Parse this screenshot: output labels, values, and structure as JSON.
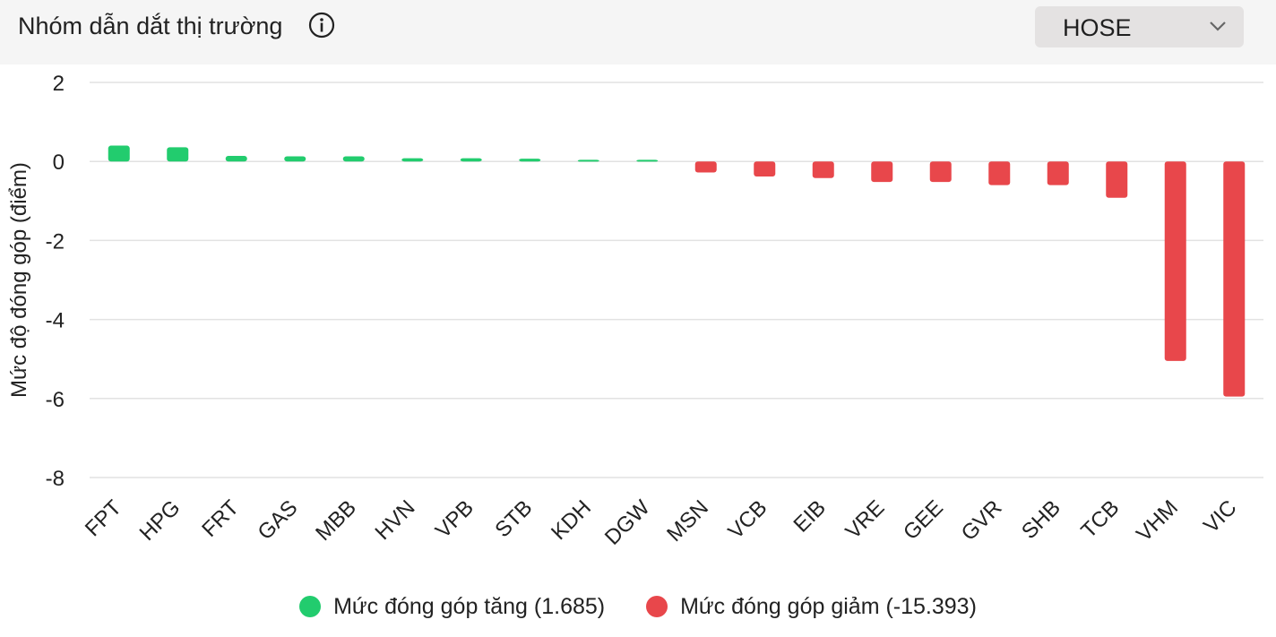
{
  "header": {
    "title": "Nhóm dẫn dắt thị trường",
    "info_icon": "info-circle-icon",
    "exchange_select": {
      "value": "HOSE",
      "icon": "chevron-down-icon"
    }
  },
  "colors": {
    "positive": "#22cc6e",
    "negative": "#e8474b",
    "grid": "#e2e2e2"
  },
  "legend": {
    "positive_label": "Mức đóng góp tăng (1.685)",
    "negative_label": "Mức đóng góp giảm (-15.393)"
  },
  "chart_data": {
    "type": "bar",
    "ylabel": "Mức độ đóng góp (điểm)",
    "ylim": [
      -8,
      2
    ],
    "yticks": [
      2,
      0,
      -2,
      -4,
      -6,
      -8
    ],
    "grid": true,
    "legend_position": "bottom",
    "categories": [
      "FPT",
      "HPG",
      "FRT",
      "GAS",
      "MBB",
      "HVN",
      "VPB",
      "STB",
      "KDH",
      "DGW",
      "MSN",
      "VCB",
      "EIB",
      "VRE",
      "GEE",
      "GVR",
      "SHB",
      "TCB",
      "VHM",
      "VIC"
    ],
    "series": [
      {
        "name": "Mức đóng góp tăng (1.685)",
        "values": [
          0.4,
          0.36,
          0.14,
          0.13,
          0.13,
          0.08,
          0.08,
          0.07,
          0.04,
          0.04,
          null,
          null,
          null,
          null,
          null,
          null,
          null,
          null,
          null,
          null
        ]
      },
      {
        "name": "Mức đóng góp giảm (-15.393)",
        "values": [
          null,
          null,
          null,
          null,
          null,
          null,
          null,
          null,
          null,
          null,
          -0.28,
          -0.38,
          -0.42,
          -0.52,
          -0.52,
          -0.6,
          -0.6,
          -0.92,
          -5.05,
          -5.95
        ]
      }
    ]
  }
}
